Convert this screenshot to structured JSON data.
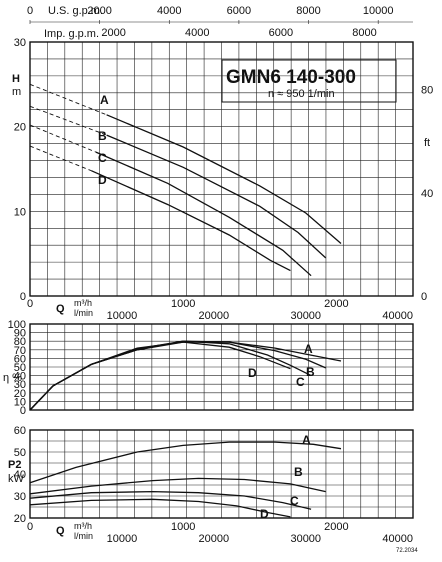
{
  "top_axes": {
    "us_gpm_label": "U.S. g.p.m.",
    "us_gpm_ticks": [
      "0",
      "2000",
      "4000",
      "6000",
      "8000",
      "10000"
    ],
    "imp_gpm_label": "Imp. g.p.m.",
    "imp_gpm_ticks": [
      "0",
      "2000",
      "4000",
      "6000",
      "8000"
    ]
  },
  "flow_axes": {
    "q_label": "Q",
    "m3h_label": "m³/h",
    "lmin_label": "l/min",
    "m3h_ticks": [
      "0",
      "1000",
      "2000"
    ],
    "lmin_ticks": [
      "0",
      "10000",
      "20000",
      "30000",
      "40000"
    ]
  },
  "title_box": {
    "model": "GMN6 140-300",
    "speed": "n ≈ 950 1/min"
  },
  "footnote": "72.2034",
  "chart_data": [
    {
      "type": "line",
      "id": "head",
      "ylabel_lines": [
        "H",
        "m"
      ],
      "ylim": [
        0,
        30
      ],
      "yticks": [
        0,
        10,
        20,
        30
      ],
      "y2label": "ft",
      "y2ticks": [
        0,
        40,
        80
      ],
      "xlim": [
        0,
        2500
      ],
      "series": [
        {
          "name": "A",
          "dashed": [
            [
              0,
              25.0
            ],
            [
              500,
              21.4
            ]
          ],
          "solid": [
            [
              500,
              21.4
            ],
            [
              1000,
              17.6
            ],
            [
              1500,
              13.0
            ],
            [
              1800,
              9.8
            ],
            [
              2030,
              6.2
            ]
          ]
        },
        {
          "name": "B",
          "dashed": [
            [
              0,
              22.4
            ],
            [
              500,
              19.0
            ]
          ],
          "solid": [
            [
              500,
              19.0
            ],
            [
              1000,
              15.2
            ],
            [
              1500,
              10.6
            ],
            [
              1750,
              7.5
            ],
            [
              1930,
              4.5
            ]
          ]
        },
        {
          "name": "C",
          "dashed": [
            [
              0,
              20.2
            ],
            [
              430,
              17.0
            ]
          ],
          "solid": [
            [
              430,
              17.0
            ],
            [
              900,
              13.3
            ],
            [
              1300,
              9.3
            ],
            [
              1650,
              5.4
            ],
            [
              1835,
              2.4
            ]
          ]
        },
        {
          "name": "D",
          "dashed": [
            [
              0,
              17.7
            ],
            [
              400,
              14.8
            ]
          ],
          "solid": [
            [
              400,
              14.8
            ],
            [
              900,
              10.8
            ],
            [
              1300,
              7.2
            ],
            [
              1570,
              4.2
            ],
            [
              1700,
              3.0
            ]
          ]
        }
      ]
    },
    {
      "type": "line",
      "id": "efficiency",
      "ylabel": "η %",
      "ylim": [
        0,
        100
      ],
      "yticks": [
        0,
        10,
        20,
        30,
        40,
        50,
        60,
        70,
        80,
        90,
        100
      ],
      "xlim": [
        0,
        2500
      ],
      "series": [
        {
          "name": "A",
          "points": [
            [
              0,
              0
            ],
            [
              150,
              28
            ],
            [
              400,
              53
            ],
            [
              700,
              70
            ],
            [
              1000,
              79
            ],
            [
              1300,
              79
            ],
            [
              1600,
              72
            ],
            [
              1800,
              65
            ],
            [
              2030,
              57
            ]
          ]
        },
        {
          "name": "B",
          "points": [
            [
              0,
              0
            ],
            [
              150,
              28
            ],
            [
              400,
              53
            ],
            [
              700,
              70
            ],
            [
              1000,
              80
            ],
            [
              1300,
              79
            ],
            [
              1600,
              69
            ],
            [
              1800,
              59
            ],
            [
              1930,
              49
            ]
          ]
        },
        {
          "name": "C",
          "points": [
            [
              0,
              0
            ],
            [
              150,
              28
            ],
            [
              400,
              53
            ],
            [
              700,
              71
            ],
            [
              1000,
              80
            ],
            [
              1300,
              77
            ],
            [
              1550,
              64
            ],
            [
              1700,
              52
            ],
            [
              1835,
              40
            ]
          ]
        },
        {
          "name": "D",
          "points": [
            [
              0,
              0
            ],
            [
              150,
              28
            ],
            [
              400,
              53
            ],
            [
              700,
              72
            ],
            [
              1000,
              79
            ],
            [
              1300,
              73
            ],
            [
              1500,
              62
            ],
            [
              1700,
              48
            ]
          ]
        }
      ]
    },
    {
      "type": "line",
      "id": "power",
      "ylabel_lines": [
        "P2",
        "kW"
      ],
      "ylim": [
        20,
        60
      ],
      "yticks": [
        20,
        30,
        40,
        50,
        60
      ],
      "xlim": [
        0,
        2500
      ],
      "series": [
        {
          "name": "A",
          "points": [
            [
              0,
              36.0
            ],
            [
              300,
              43.0
            ],
            [
              700,
              50.0
            ],
            [
              1000,
              53.0
            ],
            [
              1300,
              54.5
            ],
            [
              1600,
              54.5
            ],
            [
              1850,
              53.5
            ],
            [
              2030,
              51.5
            ]
          ]
        },
        {
          "name": "B",
          "points": [
            [
              0,
              31.0
            ],
            [
              400,
              34.5
            ],
            [
              800,
              37.0
            ],
            [
              1100,
              38.0
            ],
            [
              1400,
              37.5
            ],
            [
              1700,
              35.5
            ],
            [
              1930,
              32.0
            ]
          ]
        },
        {
          "name": "C",
          "points": [
            [
              0,
              29.0
            ],
            [
              400,
              31.5
            ],
            [
              800,
              32.0
            ],
            [
              1100,
              31.5
            ],
            [
              1400,
              30.0
            ],
            [
              1650,
              27.0
            ],
            [
              1835,
              24.0
            ]
          ]
        },
        {
          "name": "D",
          "points": [
            [
              0,
              26.0
            ],
            [
              400,
              28.0
            ],
            [
              800,
              28.5
            ],
            [
              1100,
              27.5
            ],
            [
              1350,
              25.5
            ],
            [
              1550,
              22.5
            ],
            [
              1700,
              20.5
            ]
          ]
        }
      ]
    }
  ]
}
